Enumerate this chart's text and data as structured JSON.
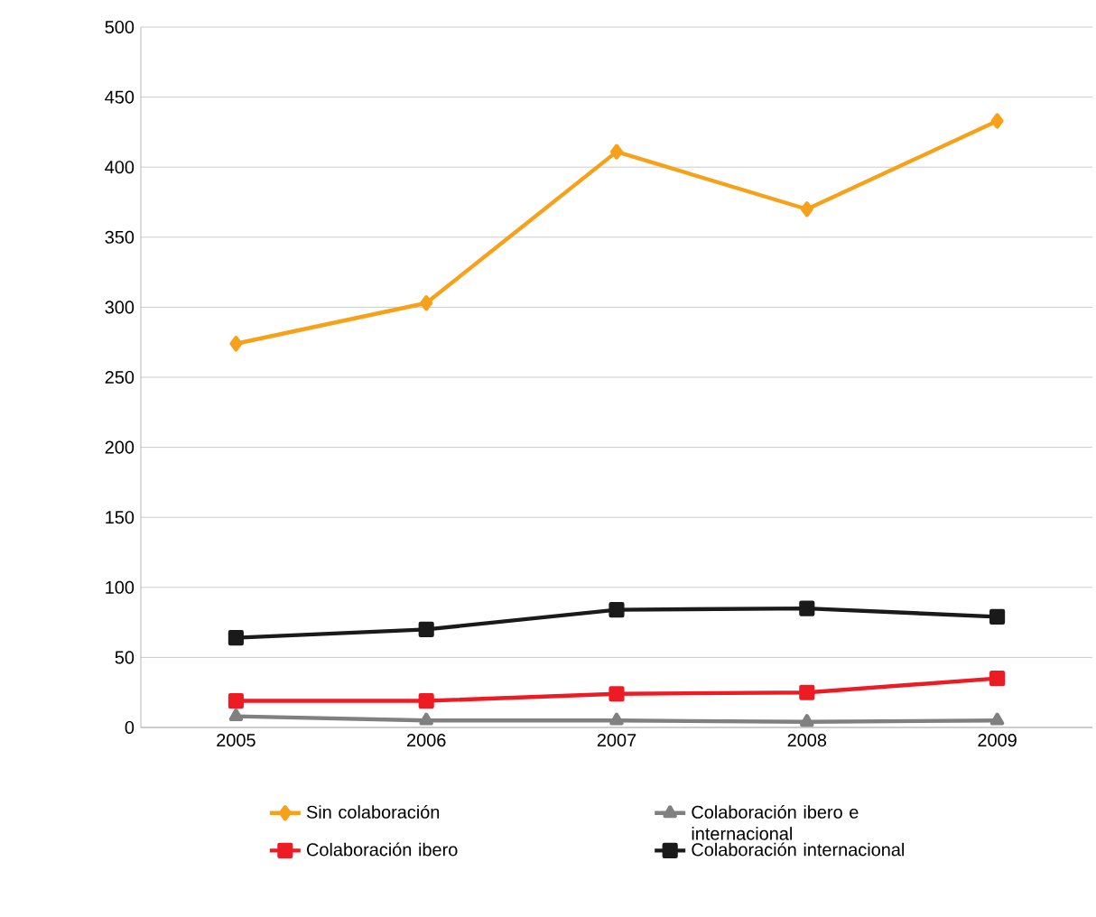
{
  "chart_data": {
    "type": "line",
    "categories": [
      "2005",
      "2006",
      "2007",
      "2008",
      "2009"
    ],
    "series": [
      {
        "name": "Sin colaboración",
        "color": "#f7a11a",
        "marker": "diamond",
        "values": [
          274,
          303,
          411,
          370,
          433
        ]
      },
      {
        "name": "Colaboración ibero e internacional",
        "color": "#808080",
        "marker": "triangle",
        "values": [
          8,
          5,
          5,
          4,
          5
        ]
      },
      {
        "name": "Colaboración ibero",
        "color": "#ed1c24",
        "marker": "square",
        "values": [
          19,
          19,
          24,
          25,
          35
        ]
      },
      {
        "name": "Colaboración internacional",
        "color": "#1a1a1a",
        "marker": "square",
        "values": [
          64,
          70,
          84,
          85,
          79
        ]
      }
    ],
    "ylim": [
      0,
      500
    ],
    "yticks": [
      0,
      50,
      100,
      150,
      200,
      250,
      300,
      350,
      400,
      450,
      500
    ],
    "grid": "y",
    "legend": "bottom",
    "line_style": "solid"
  }
}
